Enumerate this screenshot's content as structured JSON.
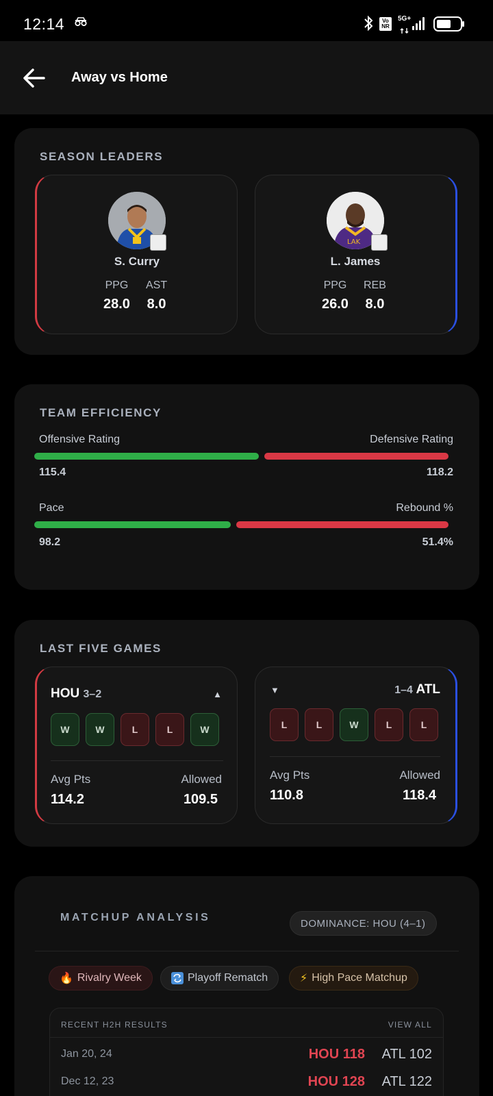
{
  "status_bar": {
    "time": "12:14",
    "network_badge": "Vo NR",
    "network_type": "5G+",
    "icons": [
      "glasses-icon",
      "bluetooth-icon",
      "signal-icon",
      "battery-icon"
    ]
  },
  "header": {
    "back_icon": "arrow-left-icon",
    "title": "Away vs Home"
  },
  "season_leaders": {
    "title": "SEASON LEADERS",
    "away": {
      "name": "S. Curry",
      "stats": [
        {
          "label": "PPG",
          "value": "28.0"
        },
        {
          "label": "AST",
          "value": "8.0"
        }
      ]
    },
    "home": {
      "name": "L. James",
      "stats": [
        {
          "label": "PPG",
          "value": "26.0"
        },
        {
          "label": "REB",
          "value": "8.0"
        }
      ]
    }
  },
  "team_efficiency": {
    "title": "TEAM EFFICIENCY",
    "rows": [
      {
        "left_label": "Offensive Rating",
        "left_value": "115.4",
        "right_label": "Defensive Rating",
        "right_value": "118.2",
        "split_fraction": 0.55
      },
      {
        "left_label": "Pace",
        "left_value": "98.2",
        "right_label": "Rebound %",
        "right_value": "51.4%",
        "split_fraction": 0.48
      }
    ],
    "colors": {
      "left": "#2fae48",
      "right": "#d93845"
    }
  },
  "last_five": {
    "title": "LAST FIVE GAMES",
    "away": {
      "team": "HOU",
      "record": "3–2",
      "trend_icon": "triangle-up-icon",
      "results": [
        "W",
        "W",
        "L",
        "L",
        "W"
      ],
      "avg_pts_label": "Avg Pts",
      "avg_pts": "114.2",
      "allowed_label": "Allowed",
      "allowed": "109.5"
    },
    "home": {
      "team": "ATL",
      "record": "1–4",
      "trend_icon": "triangle-down-icon",
      "results": [
        "L",
        "L",
        "W",
        "L",
        "L"
      ],
      "avg_pts_label": "Avg Pts",
      "avg_pts": "110.8",
      "allowed_label": "Allowed",
      "allowed": "118.4"
    }
  },
  "matchup": {
    "title": "MATCHUP ANALYSIS",
    "dominance": "DOMINANCE:  HOU (4–1)",
    "tags": [
      {
        "icon": "fire-icon",
        "label": "Rivalry Week"
      },
      {
        "icon": "repeat-icon",
        "label": "Playoff Rematch"
      },
      {
        "icon": "lightning-icon",
        "label": "High Pace Matchup"
      }
    ],
    "h2h": {
      "title": "RECENT H2H RESULTS",
      "view_all": "VIEW ALL",
      "results": [
        {
          "date": "Jan 20, 24",
          "winner": "HOU 118",
          "loser": "ATL 102"
        },
        {
          "date": "Dec 12, 23",
          "winner": "HOU 128",
          "loser": "ATL 122"
        }
      ]
    }
  },
  "colors": {
    "away_accent": "#d13a42",
    "home_accent": "#2a4fe0",
    "win": "#2fae48",
    "loss": "#d93845",
    "highlight_red": "#e04552"
  }
}
